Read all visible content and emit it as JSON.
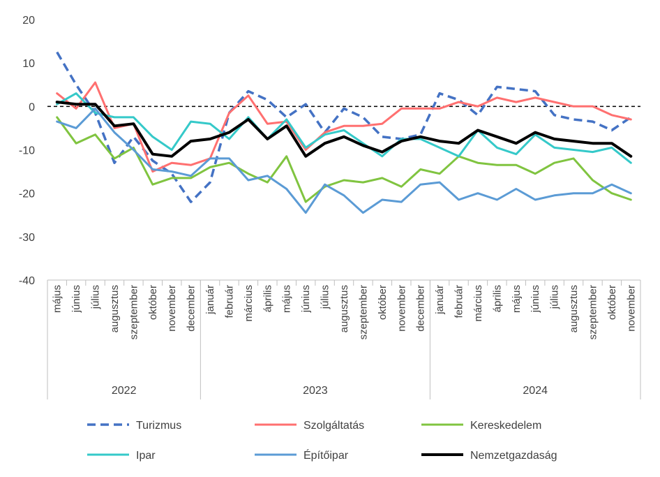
{
  "chart_data": {
    "type": "line",
    "title": "",
    "xlabel": "",
    "ylabel": "",
    "ylim": [
      -40,
      20
    ],
    "yticks": [
      20,
      10,
      0,
      -10,
      -20,
      -30,
      -40
    ],
    "reference_line": 0,
    "categories": [
      "május",
      "június",
      "július",
      "augusztus",
      "szeptember",
      "október",
      "november",
      "december",
      "január",
      "február",
      "március",
      "április",
      "május",
      "június",
      "július",
      "augusztus",
      "szeptember",
      "október",
      "november",
      "december",
      "január",
      "február",
      "március",
      "április",
      "május",
      "június",
      "július",
      "augusztus",
      "szeptember",
      "október",
      "november"
    ],
    "years": [
      {
        "label": "2022",
        "from": 0,
        "to": 7
      },
      {
        "label": "2023",
        "from": 8,
        "to": 19
      },
      {
        "label": "2024",
        "from": 20,
        "to": 30
      }
    ],
    "series": [
      {
        "name": "Turizmus",
        "color": "#4472c4",
        "dash": true,
        "width": 3.5,
        "values": [
          12.5,
          5,
          -1.5,
          -13,
          -7,
          -12.5,
          -15.5,
          -22,
          -17.5,
          -1.5,
          3.5,
          1.5,
          -2.5,
          0.5,
          -6,
          -0.5,
          -2.5,
          -7,
          -7.5,
          -6.5,
          3,
          1.5,
          -2,
          4.5,
          4,
          3.5,
          -2,
          -3,
          -3.5,
          -5.5,
          -2.5
        ]
      },
      {
        "name": "Szolgáltatás",
        "color": "#ff7070",
        "dash": false,
        "width": 3,
        "values": [
          3,
          -0.5,
          5.5,
          -5,
          -4,
          -15,
          -13,
          -13.5,
          -12,
          -1.5,
          2.5,
          -4,
          -3.5,
          -10,
          -6,
          -4.5,
          -4.5,
          -4,
          -0.5,
          -0.5,
          -0.5,
          1,
          0,
          2,
          1,
          2,
          1,
          0,
          0,
          -2,
          -3
        ]
      },
      {
        "name": "Kereskedelem",
        "color": "#80c440",
        "dash": false,
        "width": 3,
        "values": [
          -2.5,
          -8.5,
          -6.5,
          -12,
          -9.5,
          -18,
          -16.5,
          -16.5,
          -14,
          -13,
          -15.5,
          -17.5,
          -11.5,
          -22,
          -18.5,
          -17,
          -17.5,
          -16.5,
          -18.5,
          -14.5,
          -15.5,
          -11.5,
          -13,
          -13.5,
          -13.5,
          -15.5,
          -13,
          -12,
          -17,
          -20,
          -21.5
        ]
      },
      {
        "name": "Ipar",
        "color": "#35c9c9",
        "dash": false,
        "width": 3,
        "values": [
          0.5,
          3,
          -1.5,
          -2.5,
          -2.5,
          -7,
          -10,
          -3.5,
          -4,
          -7.5,
          -2.5,
          -7.5,
          -3,
          -9.5,
          -6.5,
          -5.5,
          -8.5,
          -11.5,
          -7.5,
          -7.5,
          -9.5,
          -11.5,
          -5.5,
          -9.5,
          -11,
          -6.5,
          -9.5,
          -10,
          -10.5,
          -9.5,
          -13
        ]
      },
      {
        "name": "Építőipar",
        "color": "#5b9bd5",
        "dash": false,
        "width": 3,
        "values": [
          -3.5,
          -5,
          -0.5,
          -6,
          -10,
          -14.5,
          -15,
          -16,
          -12,
          -12,
          -17,
          -16,
          -19,
          -24.5,
          -18,
          -20.5,
          -24.5,
          -21.5,
          -22,
          -18,
          -17.5,
          -21.5,
          -20,
          -21.5,
          -19,
          -21.5,
          -20.5,
          -20,
          -20,
          -18,
          -20
        ]
      },
      {
        "name": "Nemzetgazdaság",
        "color": "#000000",
        "dash": false,
        "width": 4,
        "values": [
          1,
          0.5,
          0.5,
          -4.5,
          -4,
          -11,
          -11.5,
          -8,
          -7.5,
          -6,
          -3,
          -7.5,
          -4.5,
          -11.5,
          -8.5,
          -7,
          -9,
          -10.5,
          -8,
          -7,
          -8,
          -8.5,
          -5.5,
          -7,
          -8.5,
          -6,
          -7.5,
          -8,
          -8.5,
          -8.5,
          -11.5
        ]
      }
    ],
    "legend_position": "bottom"
  }
}
